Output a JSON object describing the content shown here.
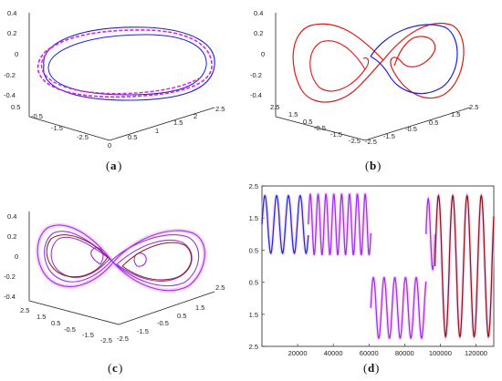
{
  "chart_data": [
    {
      "type": "line",
      "panel": "a",
      "caption_open": "(",
      "caption_letter": "a",
      "caption_close": ")",
      "z_ticks": [
        "0.4",
        "0.2",
        "0",
        "-0.2",
        "-0.4"
      ],
      "x_ticks": [
        "0",
        "0.5",
        "1",
        "1.5",
        "2",
        "2.5"
      ],
      "y_ticks": [
        "0.5",
        "-0.5",
        "-1.5",
        "-2.5"
      ],
      "series": [
        {
          "color": "#1f1fe0",
          "style": "solid"
        },
        {
          "color": "#e21de2",
          "style": "dashed"
        }
      ]
    },
    {
      "type": "line",
      "panel": "b",
      "caption_open": "(",
      "caption_letter": "b",
      "caption_close": ")",
      "z_ticks": [
        "0.4",
        "0.2",
        "0",
        "-0.2",
        "-0.4"
      ],
      "x_ticks": [
        "2.5",
        "1.5",
        "0.5",
        "-0.5",
        "-1.5",
        "-2.5"
      ],
      "y_ticks": [
        "2.5",
        "1.5",
        "0.5",
        "-0.5",
        "-1.5",
        "-2.5"
      ],
      "series": [
        {
          "color": "#e01818",
          "style": "solid"
        },
        {
          "color": "#1f1fe0",
          "style": "solid"
        }
      ]
    },
    {
      "type": "line",
      "panel": "c",
      "caption_open": "(",
      "caption_letter": "c",
      "caption_close": ")",
      "z_ticks": [
        "0.4",
        "0.2",
        "0",
        "-0.2",
        "-0.4"
      ],
      "x_ticks": [
        "2.5",
        "1.5",
        "0.5",
        "-0.5",
        "-1.5",
        "-2.5"
      ],
      "y_ticks": [
        "2.5",
        "1.5",
        "0.5",
        "-0.5",
        "-1.5",
        "-2.5"
      ],
      "series": [
        {
          "color": "#9b30e8",
          "style": "solid"
        },
        {
          "color": "#8a1a1a",
          "style": "solid"
        },
        {
          "color": "#e66ae6",
          "style": "glow"
        }
      ]
    },
    {
      "type": "line",
      "panel": "d",
      "caption_open": "(",
      "caption_letter": "d",
      "caption_close": ")",
      "xlim": [
        0,
        130000
      ],
      "ylim": [
        -2.5,
        2.5
      ],
      "y_tick_labels": [
        "2.5",
        "1.5",
        "0.5",
        "0.5",
        "1.5",
        "2.5"
      ],
      "x_ticks": [
        20000,
        40000,
        60000,
        80000,
        100000,
        120000
      ],
      "x_tick_labels": [
        "20000",
        "40000",
        "60000",
        "80000",
        "100000",
        "120000"
      ],
      "segments": [
        {
          "color": "#1f2fd8",
          "x_start": 0,
          "x_end": 26000,
          "base": 1.3,
          "amp": 0.9,
          "period": 6600
        },
        {
          "color": "#a030ea",
          "x_start": 26000,
          "x_end": 61000,
          "base": 1.3,
          "amp": 0.95,
          "period": 4400
        },
        {
          "color": "#a030ea",
          "x_start": 61000,
          "x_end": 92000,
          "base": -1.3,
          "amp": 0.95,
          "period": 6000
        },
        {
          "color": "#a030ea",
          "x_start": 92000,
          "x_end": 97000,
          "base": 1.0,
          "amp": 1.1,
          "period": 5000
        },
        {
          "color": "#8a1a1a",
          "x_start": 97000,
          "x_end": 130000,
          "base": 0.0,
          "amp": 2.2,
          "period": 8000
        }
      ]
    }
  ]
}
